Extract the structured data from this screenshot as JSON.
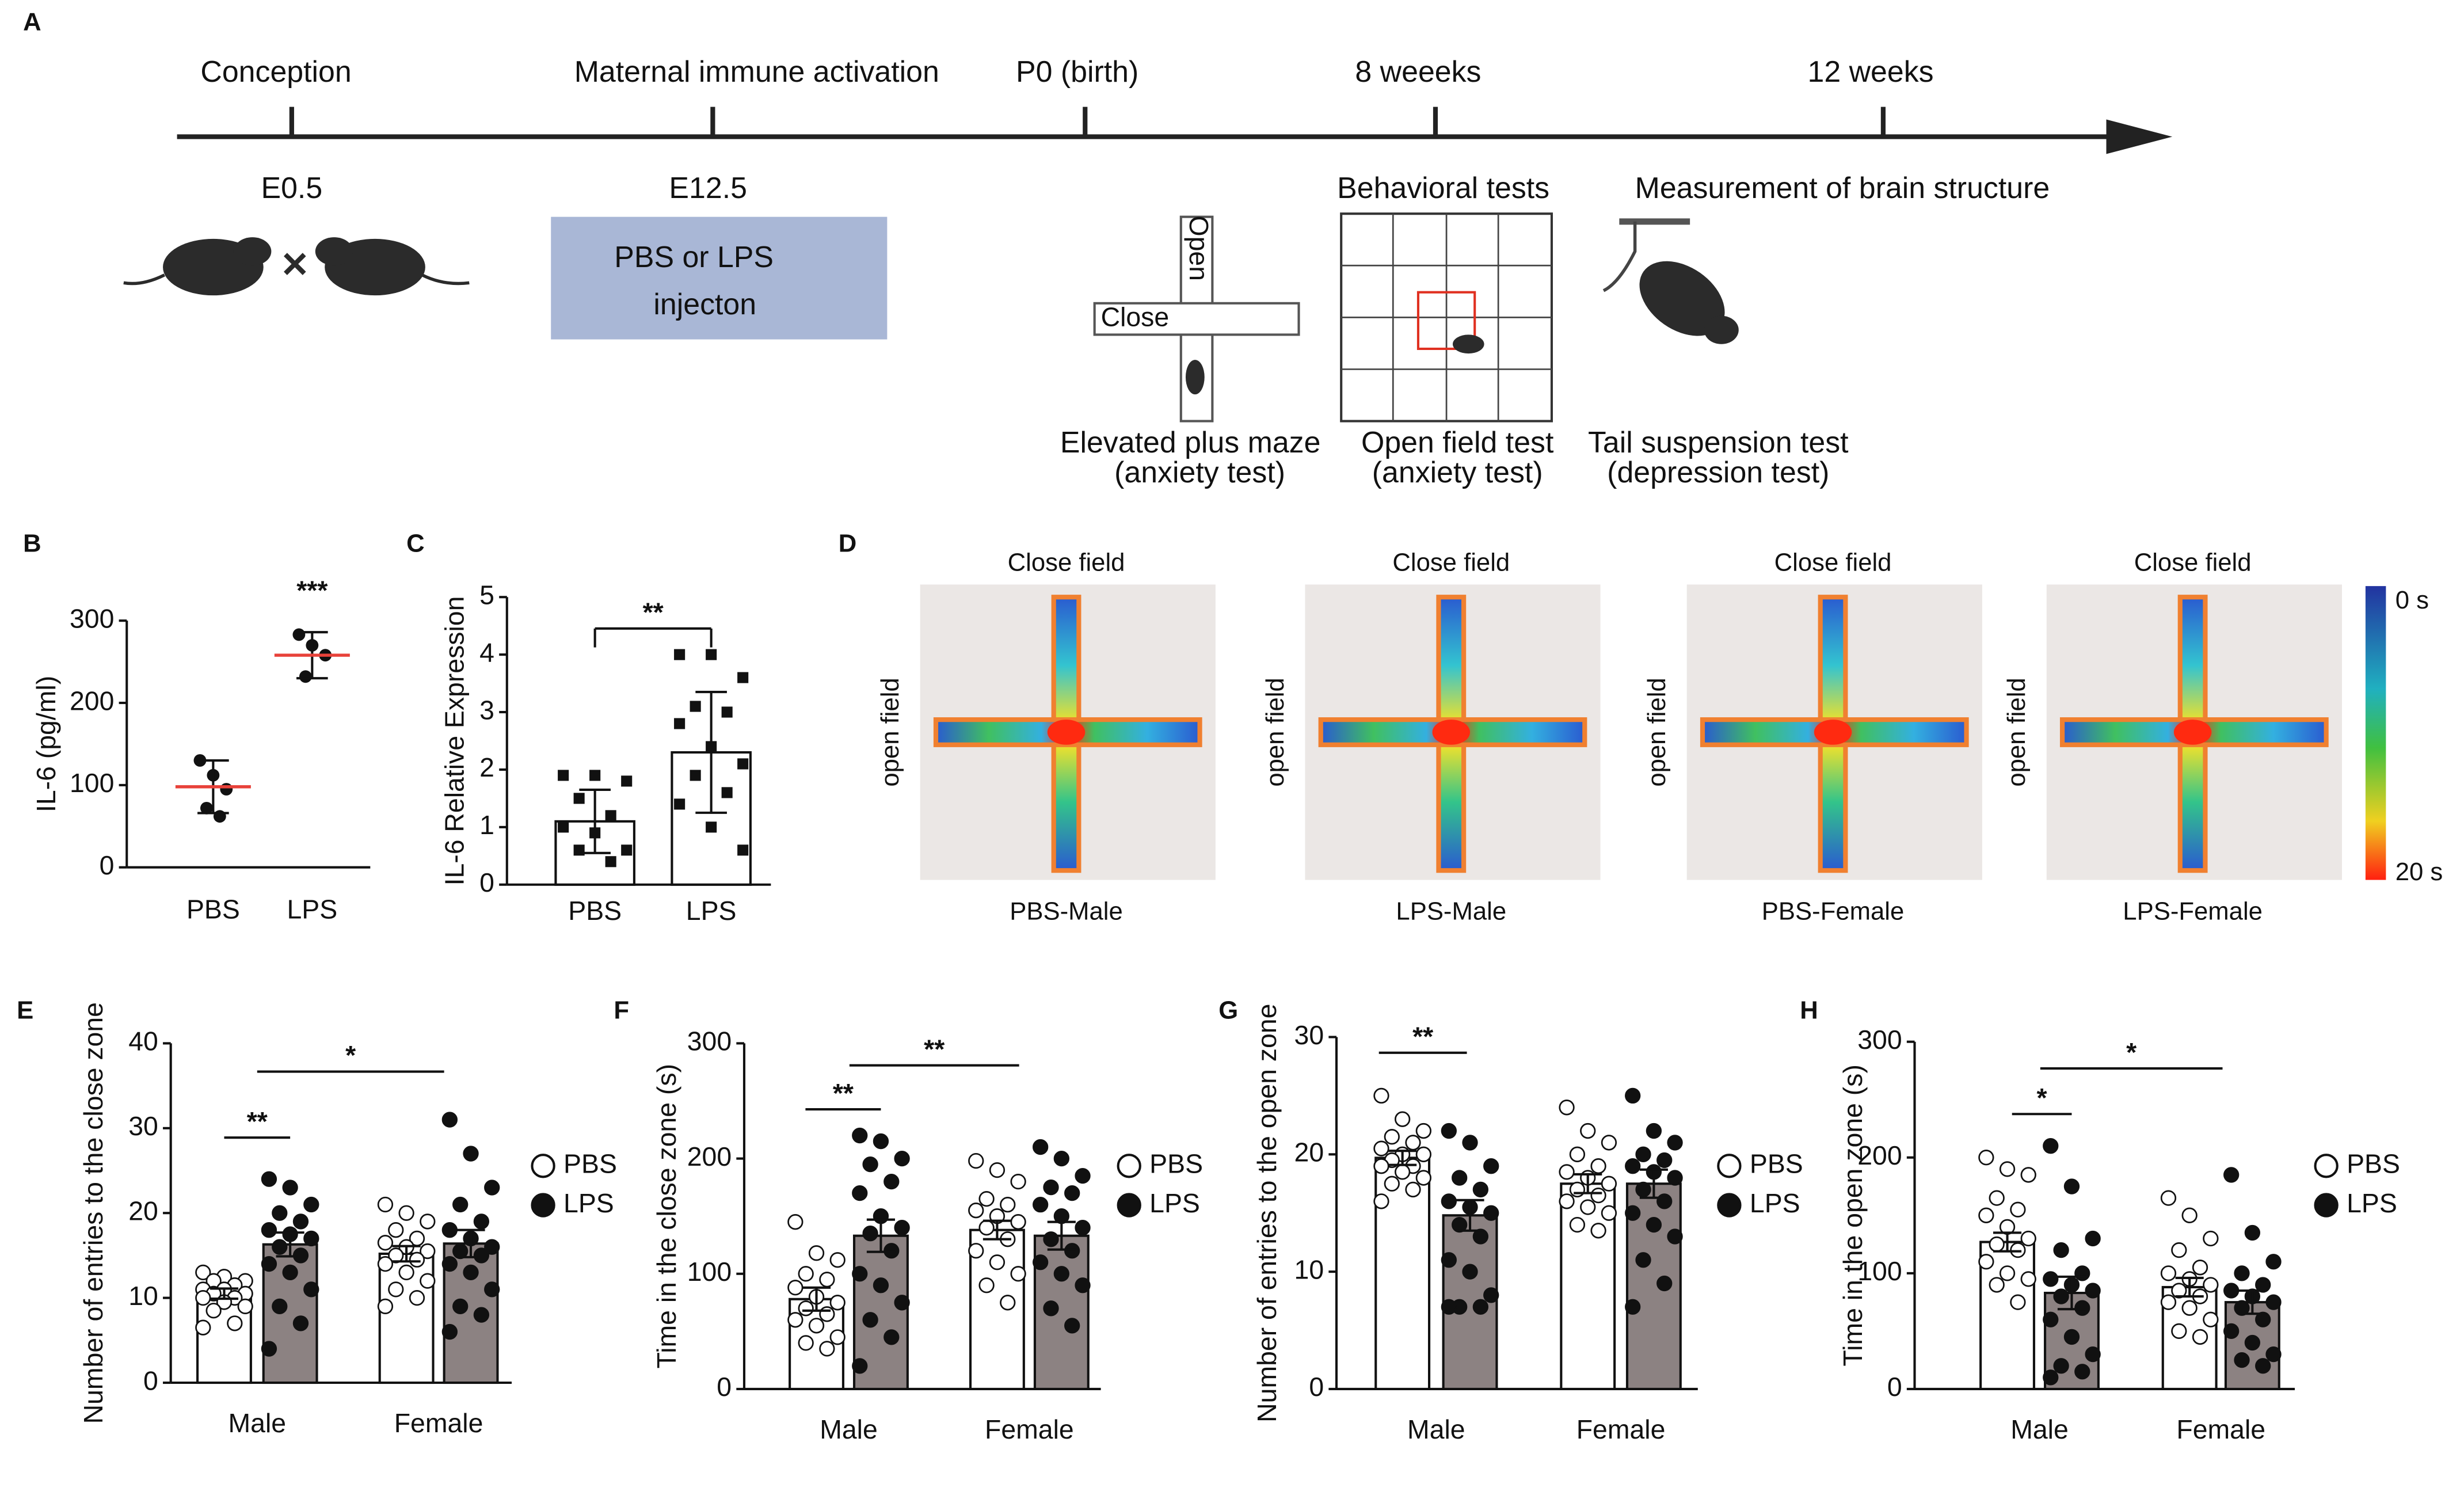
{
  "timeline": {
    "panel_label": "A",
    "events": [
      {
        "label": "Conception",
        "sub": "E0.5"
      },
      {
        "label": "Maternal immune activation",
        "sub": "E12.5"
      },
      {
        "label": "P0 (birth)"
      },
      {
        "label": "8 weeeks",
        "sub": "Behavioral tests"
      },
      {
        "label": "12 weeks",
        "sub": "Measurement of brain structure"
      }
    ],
    "injection": [
      "PBS or LPS",
      "injecton"
    ],
    "maze_labels": [
      "Open",
      "Close"
    ],
    "tests": [
      {
        "name": "Elevated plus maze",
        "note": "(anxiety test)"
      },
      {
        "name": "Open field test",
        "note": "(anxiety test)"
      },
      {
        "name": "Tail suspension test",
        "note": "(depression test)"
      }
    ]
  },
  "heatmaps": {
    "panel_label": "D",
    "panels": [
      {
        "top": "Close field",
        "side": "open field",
        "caption": "PBS-Male"
      },
      {
        "top": "Close field",
        "side": "open field",
        "caption": "LPS-Male"
      },
      {
        "top": "Close field",
        "side": "open field",
        "caption": "PBS-Female"
      },
      {
        "top": "Close field",
        "side": "open field",
        "caption": "LPS-Female"
      }
    ],
    "scale": {
      "min_label": "0 s",
      "max_label": "20 s"
    }
  },
  "chart_data": [
    {
      "panel_label": "B",
      "type": "dot",
      "ylabel": "IL-6 (pg/ml)",
      "categories": [
        "PBS",
        "LPS"
      ],
      "values": [
        98,
        258
      ],
      "errors": [
        32,
        28
      ],
      "points": [
        [
          130,
          112,
          95,
          72,
          62
        ],
        [
          283,
          270,
          258,
          232
        ]
      ],
      "ylim": [
        0,
        300
      ],
      "yticks": [
        0,
        100,
        200,
        300
      ],
      "annotations": [
        "***"
      ],
      "mean_color": "#e8423a"
    },
    {
      "panel_label": "C",
      "type": "bar",
      "ylabel": "IL-6 Relative Expression",
      "categories": [
        "PBS",
        "LPS"
      ],
      "values": [
        1.1,
        2.3
      ],
      "errors": [
        0.55,
        1.05
      ],
      "color": "#ffffff",
      "points": [
        [
          1.9,
          1.9,
          1.8,
          1.5,
          1.2,
          1.0,
          0.9,
          0.6,
          0.6,
          0.4
        ],
        [
          4.0,
          4.0,
          3.6,
          3.1,
          3.0,
          2.8,
          2.4,
          2.1,
          1.9,
          1.6,
          1.4,
          1.0,
          0.6
        ]
      ],
      "ylim": [
        0,
        5
      ],
      "yticks": [
        0,
        1,
        2,
        3,
        4,
        5
      ],
      "annotations": [
        "**"
      ]
    },
    {
      "panel_label": "E",
      "type": "grouped_bar",
      "ylabel": "Number of entries to the close zone",
      "categories": [
        "Male",
        "Female"
      ],
      "ylim": [
        0,
        40
      ],
      "yticks": [
        0,
        10,
        20,
        30,
        40
      ],
      "annotations": [
        "**",
        "*"
      ],
      "series": [
        {
          "name": "PBS",
          "color": "#ffffff",
          "values": [
            10.5,
            15.2
          ],
          "errors": [
            0.6,
            0.9
          ],
          "points": [
            [
              13,
              12.5,
              12,
              12,
              11.5,
              11,
              11,
              10.5,
              10.5,
              10,
              10,
              9.5,
              9,
              8.5,
              7,
              6.5
            ],
            [
              21,
              20,
              19,
              18,
              17,
              16.5,
              16,
              15.5,
              15,
              14.5,
              14,
              13,
              12,
              11,
              10,
              9
            ]
          ]
        },
        {
          "name": "LPS",
          "color": "#8c8282",
          "values": [
            16.3,
            16.4
          ],
          "errors": [
            1.4,
            1.6
          ],
          "points": [
            [
              24,
              23,
              21,
              20,
              19,
              18,
              17.5,
              17,
              16,
              15,
              14,
              13,
              11,
              9,
              7,
              4
            ],
            [
              31,
              27,
              23,
              21,
              19,
              18,
              17,
              16,
              15.5,
              15,
              14,
              13,
              11,
              9,
              8,
              6
            ]
          ]
        }
      ]
    },
    {
      "panel_label": "F",
      "type": "grouped_bar",
      "ylabel": "Time in the close zone (s)",
      "categories": [
        "Male",
        "Female"
      ],
      "ylim": [
        0,
        300
      ],
      "yticks": [
        0,
        100,
        200,
        300
      ],
      "annotations": [
        "**",
        "**"
      ],
      "series": [
        {
          "name": "PBS",
          "color": "#ffffff",
          "values": [
            78,
            138
          ],
          "errors": [
            10,
            8
          ],
          "points": [
            [
              145,
              118,
              112,
              100,
              95,
              88,
              80,
              75,
              70,
              65,
              60,
              55,
              45,
              40,
              35
            ],
            [
              198,
              190,
              180,
              165,
              160,
              155,
              150,
              145,
              140,
              130,
              120,
              110,
              100,
              90,
              75
            ]
          ]
        },
        {
          "name": "LPS",
          "color": "#8c8282",
          "values": [
            133,
            133
          ],
          "errors": [
            14,
            12
          ],
          "points": [
            [
              220,
              215,
              200,
              195,
              180,
              170,
              150,
              140,
              135,
              120,
              100,
              90,
              75,
              60,
              45,
              20
            ],
            [
              210,
              200,
              185,
              175,
              170,
              160,
              150,
              140,
              130,
              120,
              110,
              100,
              90,
              70,
              55
            ]
          ]
        }
      ]
    },
    {
      "panel_label": "G",
      "type": "grouped_bar",
      "ylabel": "Number of entries to the open zone",
      "categories": [
        "Male",
        "Female"
      ],
      "ylim": [
        0,
        30
      ],
      "yticks": [
        0,
        10,
        20,
        30
      ],
      "annotations": [
        "**"
      ],
      "series": [
        {
          "name": "PBS",
          "color": "#ffffff",
          "values": [
            19.7,
            17.5
          ],
          "errors": [
            0.6,
            0.8
          ],
          "points": [
            [
              25,
              23,
              22,
              21.5,
              21,
              20.5,
              20,
              20,
              19.5,
              19,
              19,
              18.5,
              18,
              17.5,
              17,
              16
            ],
            [
              24,
              22,
              21,
              20,
              19,
              18.5,
              18,
              17.5,
              17,
              16.5,
              16,
              15.5,
              15,
              14,
              13.5
            ]
          ]
        },
        {
          "name": "LPS",
          "color": "#8c8282",
          "values": [
            14.8,
            17.5
          ],
          "errors": [
            1.3,
            1.2
          ],
          "points": [
            [
              22,
              21,
              19,
              18,
              17,
              16,
              15.5,
              15,
              14,
              13,
              11,
              10,
              8,
              7,
              7,
              7
            ],
            [
              25,
              22,
              21,
              20,
              19.5,
              19,
              18.5,
              18,
              17,
              16,
              15,
              14,
              13,
              11,
              9,
              7
            ]
          ]
        }
      ]
    },
    {
      "panel_label": "H",
      "type": "grouped_bar",
      "ylabel": "Time in the open zone (s)",
      "categories": [
        "Male",
        "Female"
      ],
      "ylim": [
        0,
        300
      ],
      "yticks": [
        0,
        100,
        200,
        300
      ],
      "annotations": [
        "*",
        "*"
      ],
      "series": [
        {
          "name": "PBS",
          "color": "#ffffff",
          "values": [
            127,
            88
          ],
          "errors": [
            8,
            8
          ],
          "points": [
            [
              200,
              190,
              185,
              165,
              155,
              150,
              140,
              130,
              125,
              120,
              110,
              100,
              95,
              90,
              75
            ],
            [
              165,
              150,
              130,
              120,
              105,
              100,
              95,
              90,
              85,
              80,
              75,
              70,
              60,
              50,
              45
            ]
          ]
        },
        {
          "name": "LPS",
          "color": "#8c8282",
          "values": [
            83,
            75
          ],
          "errors": [
            14,
            10
          ],
          "points": [
            [
              210,
              175,
              130,
              120,
              100,
              95,
              90,
              85,
              80,
              70,
              60,
              45,
              30,
              20,
              15,
              10
            ],
            [
              185,
              135,
              110,
              100,
              90,
              85,
              80,
              75,
              70,
              60,
              50,
              40,
              30,
              25,
              20
            ]
          ]
        }
      ]
    }
  ]
}
